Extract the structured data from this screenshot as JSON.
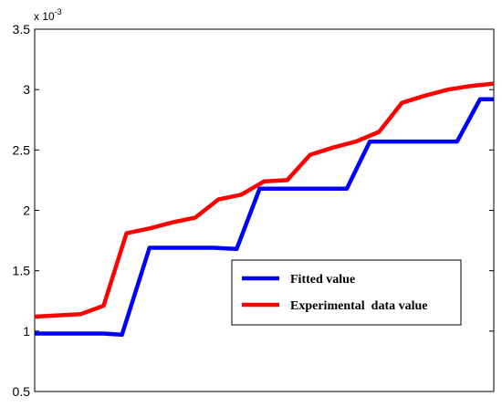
{
  "chart_data": {
    "type": "line",
    "title": "",
    "xlabel": "",
    "ylabel": "",
    "y_scale_label": "x 10",
    "y_scale_exponent": "-3",
    "ylim": [
      0.5,
      3.5
    ],
    "yticks": [
      "0.5",
      "1",
      "1.5",
      "2",
      "2.5",
      "3",
      "3.5"
    ],
    "xlim": [
      0,
      100
    ],
    "grid": false,
    "legend_position": "center-right",
    "series": [
      {
        "name": "Fitted value",
        "color": "#0000ff",
        "x": [
          0,
          15,
          19,
          25,
          39,
          44,
          49,
          63,
          68,
          73,
          87,
          92,
          97,
          100
        ],
        "y": [
          0.98,
          0.98,
          0.97,
          1.69,
          1.69,
          1.68,
          2.18,
          2.18,
          2.18,
          2.57,
          2.57,
          2.57,
          2.92,
          2.92
        ]
      },
      {
        "name": "Experimental  data value",
        "color": "#ff0000",
        "x": [
          0,
          5,
          10,
          15,
          20,
          25,
          30,
          35,
          40,
          45,
          50,
          55,
          60,
          65,
          70,
          75,
          80,
          85,
          90,
          95,
          100
        ],
        "y": [
          1.12,
          1.13,
          1.14,
          1.21,
          1.81,
          1.85,
          1.9,
          1.94,
          2.09,
          2.13,
          2.24,
          2.25,
          2.46,
          2.52,
          2.57,
          2.65,
          2.89,
          2.95,
          3.0,
          3.03,
          3.05
        ]
      }
    ]
  }
}
